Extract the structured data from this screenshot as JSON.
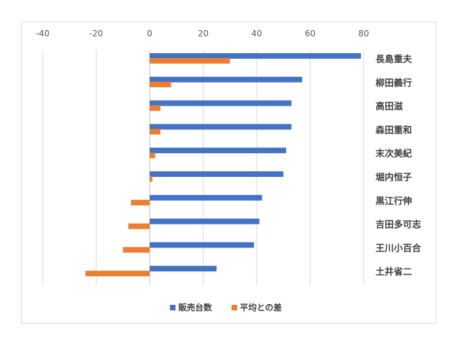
{
  "chart_data": {
    "type": "bar",
    "orientation": "horizontal",
    "categories": [
      "長島重夫",
      "柳田義行",
      "高田滋",
      "森田重和",
      "末次美紀",
      "堀内恒子",
      "黒江行伸",
      "吉田多可志",
      "王川小百合",
      "土井省二"
    ],
    "series": [
      {
        "name": "販売台数",
        "color": "#4472c4",
        "values": [
          79,
          57,
          53,
          53,
          51,
          50,
          42,
          41,
          39,
          25
        ]
      },
      {
        "name": "平均との差",
        "color": "#ed7d31",
        "values": [
          30,
          8,
          4,
          4,
          2,
          1,
          -7,
          -8,
          -10,
          -24
        ]
      }
    ],
    "x_ticks": [
      "-40",
      "-20",
      "0",
      "20",
      "40",
      "60",
      "80"
    ],
    "xlim": [
      -40,
      80
    ],
    "grid": "vertical",
    "legend_position": "bottom",
    "title": "",
    "xlabel": "",
    "ylabel": ""
  }
}
